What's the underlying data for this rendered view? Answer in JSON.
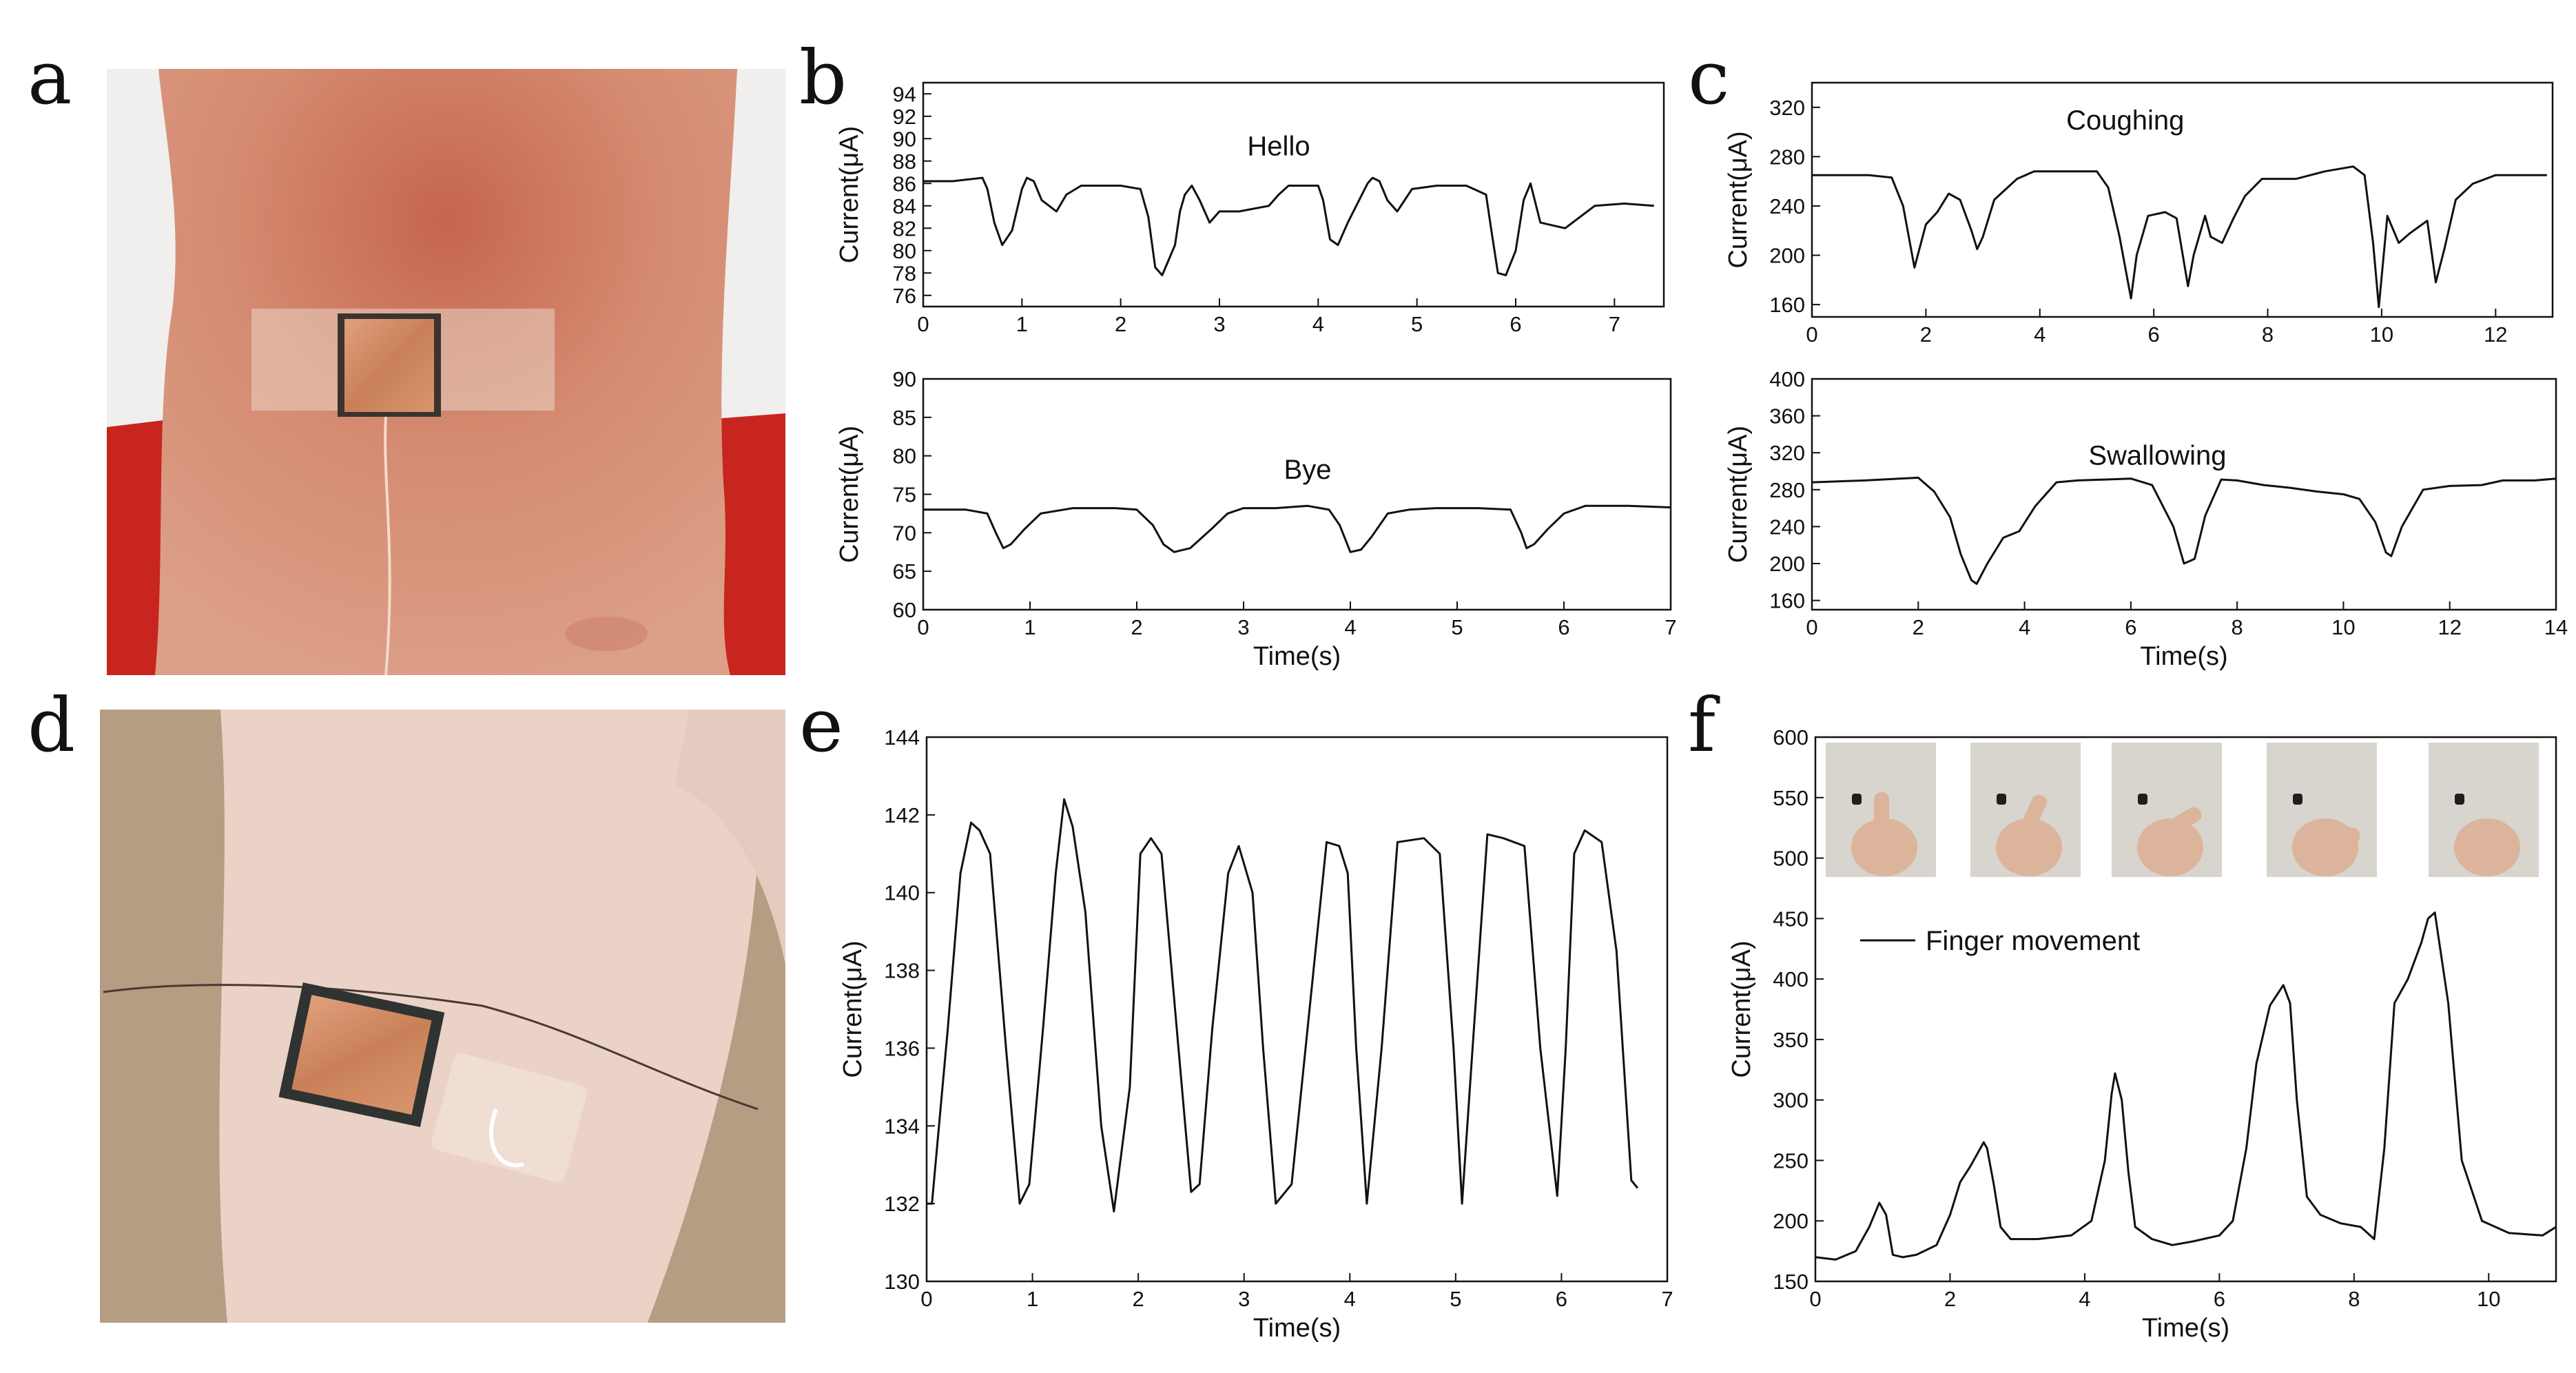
{
  "panel_labels": {
    "a": "a",
    "b": "b",
    "c": "c",
    "d": "d",
    "e": "e",
    "f": "f"
  },
  "photos": {
    "neck": {
      "skin": "#d8957b",
      "shirt": "#c8251e",
      "background": "#f0efed",
      "sensor": "#c98a63"
    },
    "wrist": {
      "skin": "#ead2c7",
      "background": "#b59d84",
      "sensor": "#c98a63"
    },
    "hand": {
      "skin": "#dcb49c",
      "background": "#d8d4ce"
    }
  },
  "chart_data": [
    {
      "id": "b-top",
      "type": "line",
      "ylabel": "Current(μA)",
      "xlabel": "",
      "annotation": "Hello",
      "xlim": [
        0,
        7.5
      ],
      "ylim": [
        75,
        95
      ],
      "xticks": [
        0,
        1,
        2,
        3,
        4,
        5,
        6,
        7
      ],
      "yticks": [
        76,
        78,
        80,
        82,
        84,
        86,
        88,
        90,
        92,
        94
      ],
      "x": [
        0,
        0.3,
        0.6,
        0.65,
        0.72,
        0.8,
        0.9,
        1.0,
        1.05,
        1.12,
        1.2,
        1.35,
        1.45,
        1.6,
        2.0,
        2.2,
        2.28,
        2.35,
        2.42,
        2.55,
        2.6,
        2.65,
        2.72,
        2.8,
        2.9,
        3.0,
        3.2,
        3.5,
        3.6,
        3.7,
        3.8,
        4.0,
        4.05,
        4.12,
        4.2,
        4.3,
        4.5,
        4.55,
        4.62,
        4.7,
        4.8,
        4.95,
        5.2,
        5.5,
        5.7,
        5.75,
        5.82,
        5.9,
        6.0,
        6.08,
        6.15,
        6.25,
        6.5,
        6.8,
        7.1,
        7.4
      ],
      "y": [
        86.2,
        86.2,
        86.5,
        85.5,
        82.5,
        80.5,
        81.8,
        85.5,
        86.5,
        86.2,
        84.5,
        83.5,
        85.0,
        85.8,
        85.8,
        85.5,
        83.0,
        78.5,
        77.8,
        80.5,
        83.5,
        85.0,
        85.8,
        84.5,
        82.5,
        83.5,
        83.5,
        84.0,
        85.0,
        85.8,
        85.8,
        85.8,
        84.5,
        81.0,
        80.5,
        82.5,
        86.0,
        86.5,
        86.2,
        84.5,
        83.5,
        85.5,
        85.8,
        85.8,
        85.0,
        82.0,
        78.0,
        77.8,
        80.0,
        84.5,
        86.0,
        82.5,
        82.0,
        84.0,
        84.2,
        84.0
      ]
    },
    {
      "id": "b-bottom",
      "type": "line",
      "ylabel": "Current(μA)",
      "xlabel": "Time(s)",
      "annotation": "Bye",
      "xlim": [
        0,
        7
      ],
      "ylim": [
        60,
        90
      ],
      "xticks": [
        0,
        1,
        2,
        3,
        4,
        5,
        6,
        7
      ],
      "yticks": [
        60,
        65,
        70,
        75,
        80,
        85,
        90
      ],
      "x": [
        0,
        0.4,
        0.6,
        0.68,
        0.75,
        0.82,
        0.95,
        1.1,
        1.4,
        1.8,
        2.0,
        2.15,
        2.25,
        2.35,
        2.5,
        2.7,
        2.85,
        3.0,
        3.3,
        3.6,
        3.8,
        3.9,
        4.0,
        4.1,
        4.2,
        4.35,
        4.55,
        4.8,
        5.2,
        5.5,
        5.6,
        5.65,
        5.72,
        5.85,
        6.0,
        6.2,
        6.6,
        7.0
      ],
      "y": [
        73,
        73,
        72.5,
        70,
        68,
        68.5,
        70.5,
        72.5,
        73.2,
        73.2,
        73,
        71,
        68.5,
        67.5,
        68,
        70.5,
        72.5,
        73.2,
        73.2,
        73.5,
        73,
        71,
        67.5,
        67.8,
        69.5,
        72.5,
        73,
        73.2,
        73.2,
        73,
        70,
        68,
        68.5,
        70.5,
        72.5,
        73.5,
        73.5,
        73.3
      ]
    },
    {
      "id": "c-top",
      "type": "line",
      "ylabel": "Current(μA)",
      "xlabel": "",
      "annotation": "Coughing",
      "xlim": [
        0,
        13
      ],
      "ylim": [
        150,
        340
      ],
      "xticks": [
        0,
        2,
        4,
        6,
        8,
        10,
        12
      ],
      "yticks": [
        160,
        200,
        240,
        280,
        320
      ],
      "x": [
        0,
        1.0,
        1.4,
        1.6,
        1.8,
        2.0,
        2.2,
        2.4,
        2.6,
        2.8,
        2.9,
        3.0,
        3.2,
        3.6,
        3.9,
        4.5,
        5.0,
        5.2,
        5.4,
        5.6,
        5.7,
        5.9,
        6.2,
        6.4,
        6.6,
        6.7,
        6.9,
        7.0,
        7.2,
        7.4,
        7.6,
        7.9,
        8.5,
        9.0,
        9.5,
        9.7,
        9.85,
        9.95,
        10.1,
        10.3,
        10.5,
        10.8,
        10.95,
        11.1,
        11.3,
        11.6,
        12.0,
        12.5,
        12.9
      ],
      "y": [
        265,
        265,
        263,
        240,
        190,
        225,
        235,
        250,
        245,
        220,
        205,
        215,
        245,
        262,
        268,
        268,
        268,
        255,
        215,
        165,
        200,
        232,
        235,
        230,
        175,
        200,
        232,
        215,
        210,
        230,
        248,
        262,
        262,
        268,
        272,
        265,
        210,
        158,
        232,
        210,
        218,
        228,
        178,
        205,
        245,
        258,
        265,
        265,
        265
      ]
    },
    {
      "id": "c-bottom",
      "type": "line",
      "ylabel": "Current(μA)",
      "xlabel": "Time(s)",
      "annotation": "Swallowing",
      "xlim": [
        0,
        14
      ],
      "ylim": [
        150,
        400
      ],
      "xticks": [
        0,
        2,
        4,
        6,
        8,
        10,
        12,
        14
      ],
      "yticks": [
        160,
        200,
        240,
        280,
        320,
        360,
        400
      ],
      "x": [
        0,
        1.0,
        2.0,
        2.3,
        2.6,
        2.8,
        3.0,
        3.1,
        3.3,
        3.6,
        3.9,
        4.2,
        4.6,
        5.0,
        5.5,
        6.0,
        6.4,
        6.8,
        7.0,
        7.2,
        7.4,
        7.7,
        8.0,
        8.5,
        9.0,
        9.5,
        10.0,
        10.3,
        10.6,
        10.8,
        10.9,
        11.1,
        11.5,
        12.0,
        12.6,
        13.0,
        13.6,
        14.0
      ],
      "y": [
        288,
        290,
        293,
        278,
        250,
        210,
        182,
        178,
        200,
        228,
        235,
        262,
        288,
        290,
        291,
        292,
        285,
        240,
        200,
        205,
        252,
        291,
        290,
        285,
        282,
        278,
        275,
        270,
        245,
        212,
        208,
        240,
        280,
        284,
        285,
        290,
        290,
        292
      ]
    },
    {
      "id": "e",
      "type": "line",
      "ylabel": "Current(μA)",
      "xlabel": "Time(s)",
      "annotation": "",
      "xlim": [
        0,
        7
      ],
      "ylim": [
        130,
        144
      ],
      "xticks": [
        0,
        1,
        2,
        3,
        4,
        5,
        6,
        7
      ],
      "yticks": [
        130,
        132,
        134,
        136,
        138,
        140,
        142,
        144
      ],
      "x": [
        0,
        0.05,
        0.2,
        0.32,
        0.42,
        0.5,
        0.6,
        0.75,
        0.88,
        0.97,
        1.1,
        1.22,
        1.3,
        1.38,
        1.5,
        1.65,
        1.77,
        1.92,
        2.02,
        2.12,
        2.22,
        2.38,
        2.5,
        2.58,
        2.7,
        2.85,
        2.95,
        3.08,
        3.18,
        3.3,
        3.45,
        3.6,
        3.78,
        3.9,
        3.98,
        4.06,
        4.16,
        4.3,
        4.45,
        4.7,
        4.85,
        4.98,
        5.06,
        5.16,
        5.3,
        5.45,
        5.65,
        5.8,
        5.96,
        6.04,
        6.12,
        6.22,
        6.38,
        6.52,
        6.66,
        6.72
      ],
      "y": [
        132,
        132,
        136.5,
        140.5,
        141.8,
        141.6,
        141,
        136,
        132,
        132.5,
        136.5,
        140.5,
        142.4,
        141.7,
        139.5,
        134,
        131.8,
        135,
        141,
        141.4,
        141,
        136,
        132.3,
        132.5,
        136.5,
        140.5,
        141.2,
        140,
        136,
        132,
        132.5,
        136.5,
        141.3,
        141.2,
        140.5,
        136,
        132,
        136,
        141.3,
        141.4,
        141,
        136,
        132,
        136,
        141.5,
        141.4,
        141.2,
        136,
        132.2,
        136,
        141,
        141.6,
        141.3,
        138.5,
        132.6,
        132.4
      ]
    },
    {
      "id": "f",
      "type": "line",
      "ylabel": "Current(μA)",
      "xlabel": "Time(s)",
      "annotation": "",
      "legend": "Finger movement",
      "xlim": [
        0,
        11
      ],
      "ylim": [
        150,
        600
      ],
      "xticks": [
        0,
        2,
        4,
        6,
        8,
        10
      ],
      "yticks": [
        150,
        200,
        250,
        300,
        350,
        400,
        450,
        500,
        550,
        600
      ],
      "x": [
        0,
        0.3,
        0.6,
        0.8,
        0.95,
        1.05,
        1.15,
        1.3,
        1.5,
        1.8,
        2.0,
        2.15,
        2.3,
        2.5,
        2.55,
        2.65,
        2.75,
        2.9,
        3.3,
        3.8,
        4.1,
        4.3,
        4.4,
        4.45,
        4.55,
        4.65,
        4.75,
        5.0,
        5.3,
        5.6,
        6.0,
        6.2,
        6.4,
        6.55,
        6.75,
        6.95,
        7.05,
        7.15,
        7.3,
        7.5,
        7.8,
        8.1,
        8.3,
        8.45,
        8.6,
        8.8,
        9.0,
        9.1,
        9.2,
        9.4,
        9.6,
        9.9,
        10.3,
        10.8,
        11.0
      ],
      "y": [
        170,
        168,
        175,
        195,
        215,
        205,
        172,
        170,
        172,
        180,
        205,
        232,
        245,
        265,
        260,
        230,
        195,
        185,
        185,
        188,
        200,
        250,
        305,
        322,
        300,
        240,
        195,
        185,
        180,
        183,
        188,
        200,
        260,
        330,
        378,
        395,
        380,
        300,
        220,
        205,
        198,
        195,
        185,
        260,
        380,
        400,
        430,
        450,
        455,
        380,
        250,
        200,
        190,
        188,
        195
      ]
    }
  ]
}
